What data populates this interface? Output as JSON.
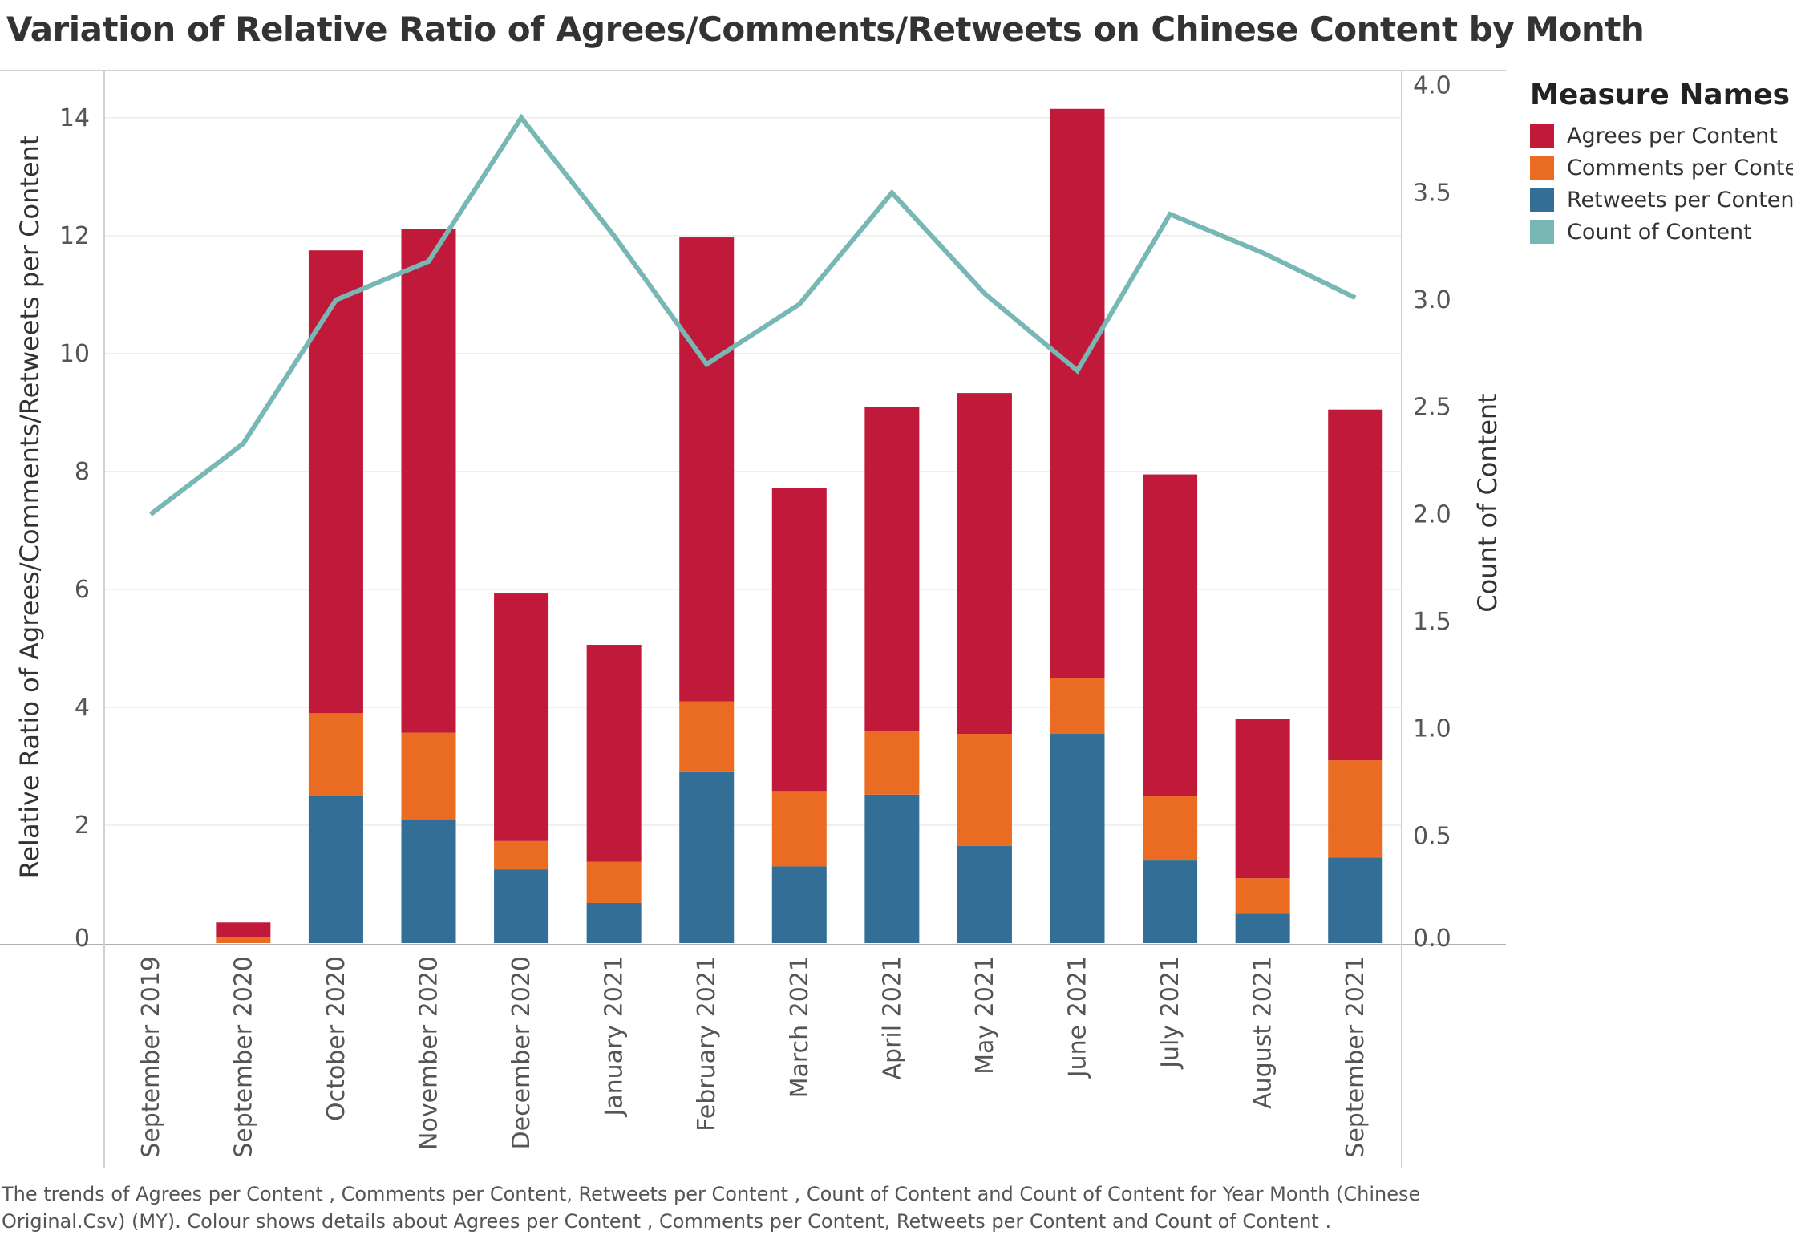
{
  "title": "Variation of Relative Ratio of Agrees/Comments/Retweets on Chinese Content by Month",
  "footnote": "The trends of  Agrees per Content ,  Comments per Content,  Retweets per Content ,  Count of Content  and  Count of Content  for Year Month (Chinese Original.Csv) (MY).  Colour shows details about  Agrees per Content ,  Comments per Content,  Retweets per Content  and  Count of Content .",
  "legend": {
    "title": "Measure Names",
    "items": [
      {
        "label": "Agrees per Content",
        "color": "#c0193a"
      },
      {
        "label": "Comments per Content",
        "color": "#e96c22"
      },
      {
        "label": "Retweets per Content",
        "color": "#326e96"
      },
      {
        "label": "Count of Content",
        "color": "#78b8b4"
      }
    ]
  },
  "chart_data": {
    "type": "bar",
    "stacked": true,
    "title": "Variation of Relative Ratio of Agrees/Comments/Retweets on Chinese Content by Month",
    "ylabel": "Relative Ratio of Agrees/Comments/Retweets per Content",
    "y2label": "Count of Content",
    "ylim": [
      0,
      14.8
    ],
    "y2lim": [
      0,
      4.07
    ],
    "yticks": [
      0,
      2,
      4,
      6,
      8,
      10,
      12,
      14
    ],
    "yticks_right": [
      "0.0",
      "0.5",
      "1.0",
      "1.5",
      "2.0",
      "2.5",
      "3.0",
      "3.5",
      "4.0"
    ],
    "categories": [
      "September 2019",
      "September 2020",
      "October 2020",
      "November 2020",
      "December 2020",
      "January 2021",
      "February 2021",
      "March 2021",
      "April 2021",
      "May 2021",
      "June 2021",
      "July 2021",
      "August 2021",
      "September 2021"
    ],
    "series": [
      {
        "name": "Retweets per Content",
        "values": [
          0,
          0,
          2.5,
          2.1,
          1.25,
          0.68,
          2.9,
          1.3,
          2.52,
          1.65,
          3.55,
          1.4,
          0.5,
          1.45
        ]
      },
      {
        "name": "Comments per Content",
        "values": [
          0,
          0.1,
          1.4,
          1.47,
          0.48,
          0.7,
          1.2,
          1.28,
          1.07,
          1.9,
          0.95,
          1.1,
          0.6,
          1.65
        ]
      },
      {
        "name": "Agrees per Content",
        "values": [
          0,
          0.25,
          7.85,
          8.55,
          4.2,
          3.68,
          7.87,
          5.14,
          5.51,
          5.78,
          9.65,
          5.45,
          2.7,
          5.95
        ]
      }
    ],
    "line_series": {
      "name": "Count of Content",
      "axis": "right",
      "values": [
        2.0,
        2.33,
        3.0,
        3.18,
        3.85,
        3.3,
        2.7,
        2.98,
        3.5,
        3.03,
        2.67,
        3.4,
        3.22,
        3.01
      ]
    },
    "legend_position": "right",
    "grid": true
  }
}
